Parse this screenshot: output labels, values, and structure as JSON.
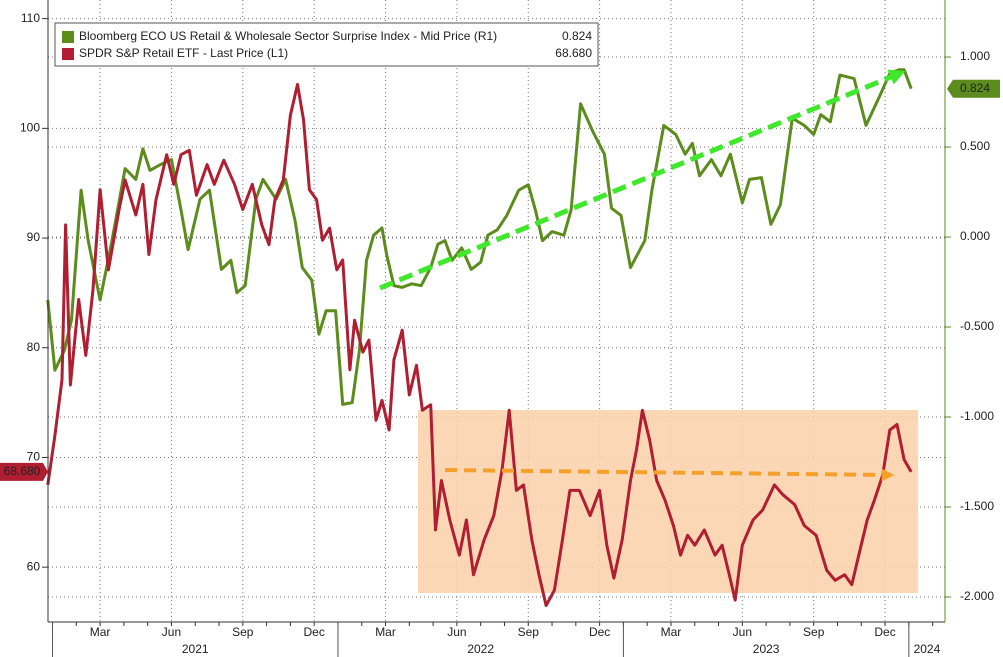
{
  "chart_data": {
    "type": "line",
    "xlim": [
      -0.19,
      37.52
    ],
    "ylim": [
      55,
      111.7
    ],
    "y2lim": [
      -2.139,
      1.317
    ],
    "yticks": [
      60,
      70,
      80,
      90,
      100,
      110
    ],
    "y2ticks": [
      {
        "value": 1,
        "label": "1.000"
      },
      {
        "value": 0.5,
        "label": "0.500"
      },
      {
        "value": 0,
        "label": "0.000"
      },
      {
        "value": -0.5,
        "label": "-0.500"
      },
      {
        "value": -1,
        "label": "-1.000"
      },
      {
        "value": -1.5,
        "label": "-1.500"
      },
      {
        "value": -2,
        "label": "-2.000"
      }
    ],
    "xticks": [
      {
        "value": 2,
        "label": "Mar"
      },
      {
        "value": 5,
        "label": "Jun"
      },
      {
        "value": 8,
        "label": "Sep"
      },
      {
        "value": 11,
        "label": "Dec"
      },
      {
        "value": 14,
        "label": "Mar"
      },
      {
        "value": 17,
        "label": "Jun"
      },
      {
        "value": 20,
        "label": "Sep"
      },
      {
        "value": 23,
        "label": "Dec"
      },
      {
        "value": 26,
        "label": "Mar"
      },
      {
        "value": 29,
        "label": "Jun"
      },
      {
        "value": 32,
        "label": "Sep"
      },
      {
        "value": 35,
        "label": "Dec"
      }
    ],
    "year_ticks": [
      {
        "value": 0,
        "label": "2021"
      },
      {
        "value": 12,
        "label": "2022"
      },
      {
        "value": 24,
        "label": "2023"
      },
      {
        "value": 36,
        "label": "2024"
      }
    ],
    "grid": true,
    "series": [
      {
        "name": "Bloomberg ECO US Retail & Wholesale Sector Surprise Index - Mid Price (R1)",
        "color": "#5b8c1c",
        "axis": "y2",
        "last_value": 0.824,
        "last_label": "0.824",
        "x": [
          -0.2,
          0.1,
          0.5,
          0.8,
          1.2,
          1.5,
          2.0,
          2.5,
          3.05,
          3.5,
          3.8,
          4.1,
          4.5,
          5.0,
          5.4,
          5.7,
          6.2,
          6.6,
          7.1,
          7.5,
          7.75,
          8.1,
          8.55,
          8.85,
          9.4,
          9.8,
          10.2,
          10.5,
          10.9,
          11.2,
          11.5,
          11.9,
          12.2,
          12.6,
          12.9,
          13.2,
          13.5,
          13.85,
          14.05,
          14.35,
          14.7,
          15.1,
          15.5,
          15.9,
          16.2,
          16.5,
          16.8,
          17.2,
          17.6,
          18.0,
          18.3,
          18.7,
          19.1,
          19.6,
          20.0,
          20.3,
          20.6,
          21.0,
          21.5,
          21.8,
          22.2,
          22.7,
          23.2,
          23.5,
          23.9,
          24.3,
          24.9,
          25.2,
          25.7,
          26.2,
          26.6,
          26.9,
          27.2,
          27.7,
          28.1,
          28.5,
          29.0,
          29.3,
          29.8,
          30.2,
          30.6,
          31.1,
          31.6,
          32.0,
          32.3,
          32.7,
          33.1,
          33.7,
          34.2,
          34.8,
          35.2,
          35.6,
          35.8,
          36.1
        ],
        "values": [
          -0.35,
          -0.74,
          -0.63,
          -0.46,
          0.26,
          -0.02,
          -0.35,
          -0.02,
          0.38,
          0.32,
          0.49,
          0.37,
          0.4,
          0.43,
          0.15,
          -0.07,
          0.21,
          0.26,
          -0.18,
          -0.13,
          -0.31,
          -0.27,
          0.21,
          0.32,
          0.21,
          0.32,
          0.09,
          -0.17,
          -0.24,
          -0.54,
          -0.41,
          -0.41,
          -0.93,
          -0.92,
          -0.63,
          -0.13,
          0.01,
          0.05,
          -0.1,
          -0.27,
          -0.28,
          -0.26,
          -0.27,
          -0.17,
          -0.04,
          -0.02,
          -0.13,
          -0.06,
          -0.18,
          -0.14,
          0.01,
          0.04,
          0.12,
          0.26,
          0.29,
          0.15,
          -0.02,
          0.03,
          0.01,
          0.15,
          0.74,
          0.59,
          0.46,
          0.16,
          0.12,
          -0.17,
          -0.02,
          0.26,
          0.62,
          0.57,
          0.46,
          0.52,
          0.34,
          0.43,
          0.34,
          0.46,
          0.19,
          0.32,
          0.33,
          0.07,
          0.18,
          0.66,
          0.62,
          0.57,
          0.68,
          0.64,
          0.9,
          0.88,
          0.62,
          0.79,
          0.91,
          0.93,
          0.93,
          0.824
        ]
      },
      {
        "name": "SPDR S&P Retail ETF - Last Price (L1)",
        "color": "#b01e32",
        "axis": "y",
        "last_value": 68.68,
        "last_label": "68.680",
        "x": [
          -0.2,
          0.1,
          0.4,
          0.55,
          0.75,
          1.1,
          1.4,
          1.7,
          2.0,
          2.35,
          2.8,
          3.05,
          3.5,
          3.8,
          4.05,
          4.35,
          4.8,
          5.1,
          5.4,
          5.75,
          6.05,
          6.5,
          6.8,
          7.2,
          7.65,
          8.0,
          8.4,
          8.8,
          9.1,
          9.35,
          9.7,
          10.0,
          10.3,
          10.55,
          10.8,
          11.1,
          11.35,
          11.65,
          11.95,
          12.2,
          12.5,
          12.7,
          13.05,
          13.3,
          13.6,
          13.85,
          14.15,
          14.35,
          14.7,
          15.0,
          15.3,
          15.55,
          15.9,
          16.1,
          16.35,
          16.7,
          17.1,
          17.4,
          17.7,
          18.15,
          18.55,
          18.9,
          19.2,
          19.5,
          19.8,
          20.15,
          20.45,
          20.75,
          21.1,
          21.4,
          21.75,
          22.15,
          22.6,
          23.0,
          23.3,
          23.6,
          23.95,
          24.3,
          24.55,
          24.8,
          25.1,
          25.4,
          25.75,
          26.1,
          26.4,
          26.7,
          27.0,
          27.4,
          27.85,
          28.15,
          28.45,
          28.7,
          29.0,
          29.45,
          29.85,
          30.35,
          30.7,
          31.2,
          31.6,
          32.1,
          32.55,
          32.9,
          33.3,
          33.6,
          33.95,
          34.25,
          34.55,
          34.9,
          35.2,
          35.5,
          35.8,
          36.1
        ],
        "values": [
          67.5,
          72.0,
          77.1,
          91.2,
          76.6,
          84.4,
          79.3,
          85.3,
          94.4,
          87.1,
          92.6,
          95.3,
          92.1,
          94.9,
          88.5,
          93.5,
          97.6,
          94.9,
          97.6,
          98.0,
          93.9,
          96.7,
          94.9,
          97.1,
          94.9,
          92.6,
          94.9,
          91.2,
          89.4,
          93.5,
          95.3,
          101.2,
          104.0,
          100.8,
          94.4,
          93.5,
          89.8,
          90.9,
          87.1,
          88.0,
          78.0,
          82.5,
          79.6,
          80.7,
          73.4,
          75.2,
          72.5,
          78.9,
          81.6,
          75.7,
          78.4,
          74.3,
          74.8,
          63.4,
          67.9,
          64.3,
          61.1,
          64.3,
          59.3,
          62.5,
          64.7,
          68.9,
          74.3,
          67.0,
          67.5,
          62.5,
          59.3,
          56.5,
          57.9,
          62.0,
          67.0,
          67.0,
          64.7,
          67.0,
          62.0,
          59.0,
          62.5,
          67.9,
          70.7,
          74.3,
          71.6,
          67.9,
          66.1,
          63.8,
          61.1,
          62.9,
          62.0,
          63.4,
          61.1,
          62.0,
          59.3,
          57.0,
          62.0,
          64.3,
          65.2,
          67.5,
          66.6,
          65.7,
          63.8,
          62.9,
          59.7,
          58.8,
          59.3,
          58.4,
          61.6,
          64.3,
          66.1,
          68.4,
          72.5,
          73.0,
          69.8,
          68.68
        ]
      }
    ]
  }
}
